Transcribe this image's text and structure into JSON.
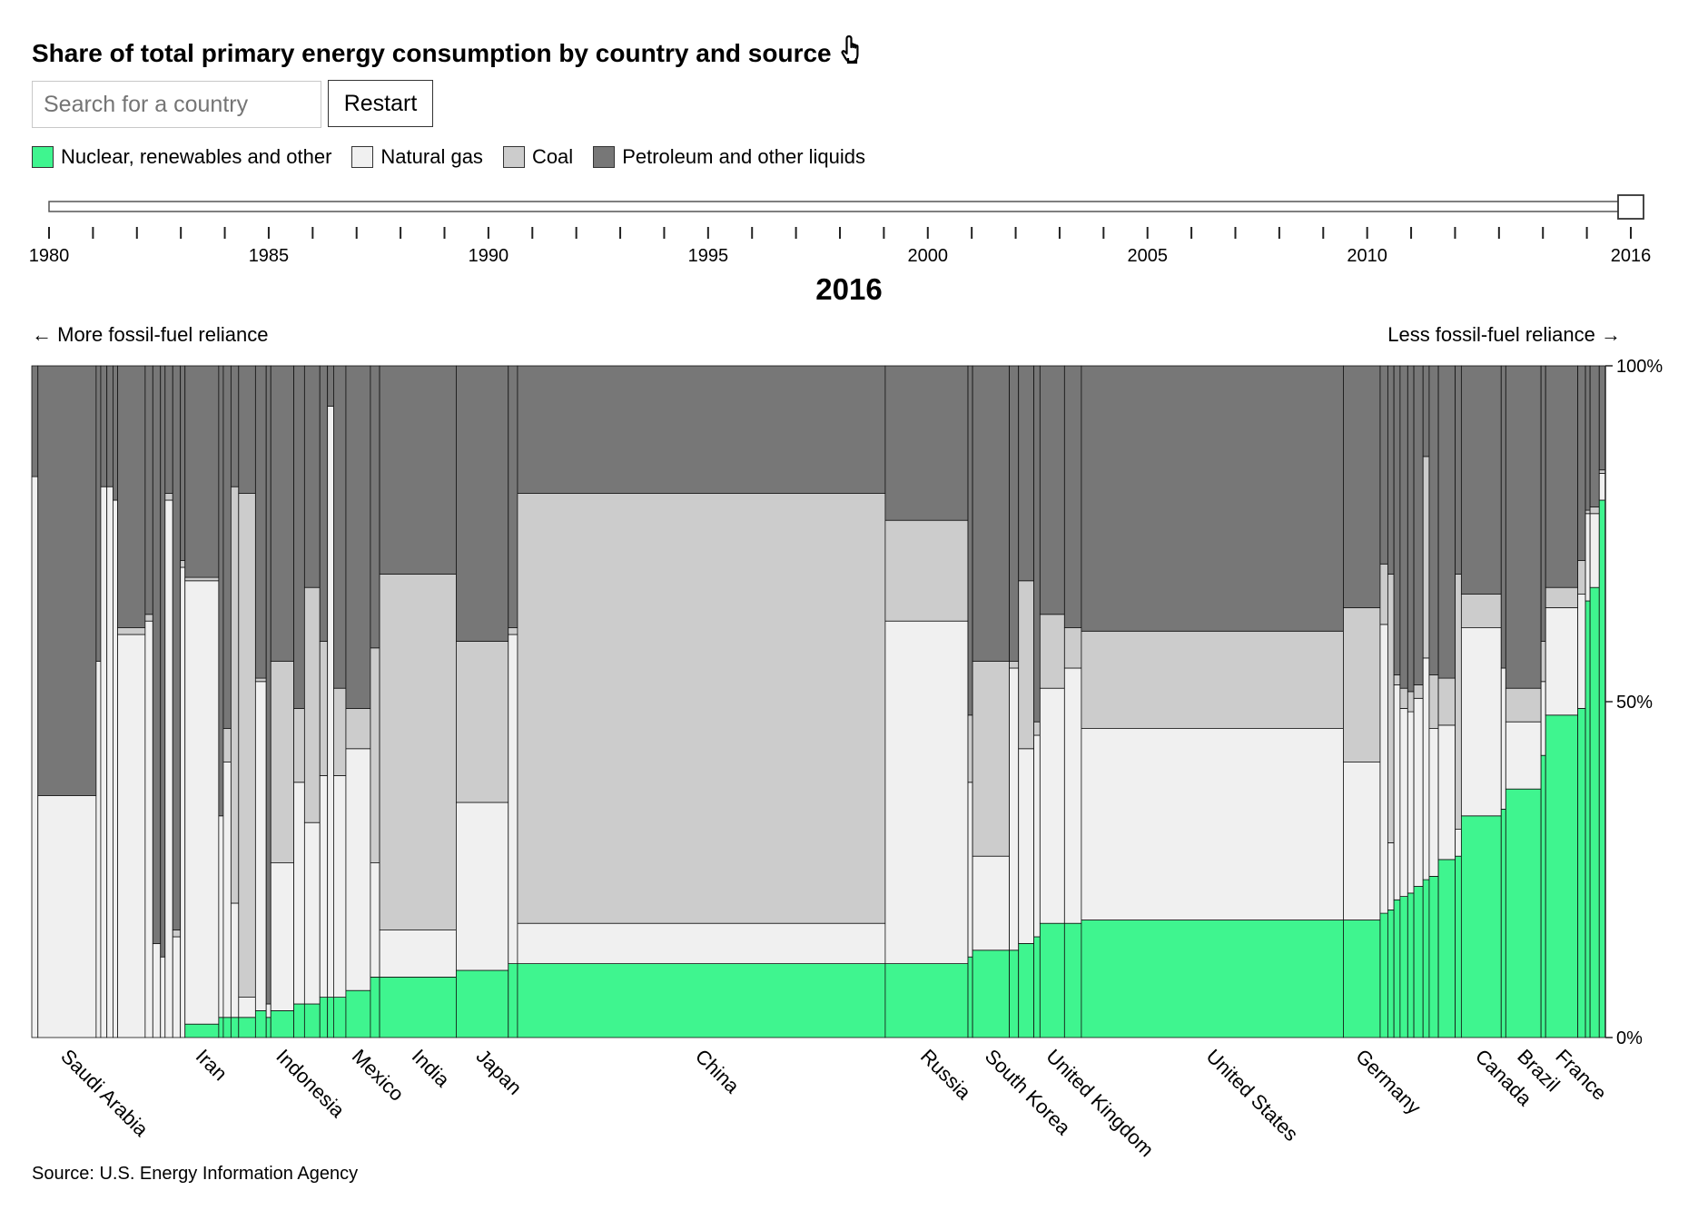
{
  "header": {
    "title": "Share of total primary energy consumption by country and source",
    "pointer_icon": "pointer-hand-icon"
  },
  "controls": {
    "search_placeholder": "Search for a country",
    "restart_label": "Restart"
  },
  "legend": {
    "items": [
      {
        "label": "Nuclear, renewables and other",
        "color": "#3ff58f"
      },
      {
        "label": "Natural gas",
        "color": "#f0f0f0"
      },
      {
        "label": "Coal",
        "color": "#cccccc"
      },
      {
        "label": "Petroleum and other liquids",
        "color": "#777777"
      }
    ]
  },
  "timeline": {
    "start_year": 1980,
    "end_year": 2016,
    "selected_year": 2016,
    "labels": [
      "1980",
      "1985",
      "1990",
      "1995",
      "2000",
      "2005",
      "2010",
      "2016"
    ]
  },
  "selected_year_label": "2016",
  "direction": {
    "left": "← More fossil-fuel reliance",
    "right": "Less fossil-fuel reliance →"
  },
  "source": "Source: U.S. Energy Information Agency",
  "chart_data": {
    "type": "marimekko",
    "ylim": [
      0,
      100
    ],
    "y_ticks": [
      "0%",
      "50%",
      "100%"
    ],
    "series": [
      {
        "name": "Nuclear, renewables and other",
        "color": "#3ff58f"
      },
      {
        "name": "Natural gas",
        "color": "#f0f0f0"
      },
      {
        "name": "Coal",
        "color": "#cccccc"
      },
      {
        "name": "Petroleum and other liquids",
        "color": "#777777"
      }
    ],
    "countries": [
      {
        "name": "",
        "share": 0.4,
        "values": [
          0,
          83.5,
          0,
          16.5
        ]
      },
      {
        "name": "Saudi Arabia",
        "share": 3.8,
        "values": [
          0,
          36,
          0,
          64
        ]
      },
      {
        "name": "",
        "share": 0.3,
        "values": [
          0,
          56,
          0,
          44
        ]
      },
      {
        "name": "",
        "share": 0.4,
        "values": [
          0,
          82,
          0,
          18
        ]
      },
      {
        "name": "",
        "share": 0.4,
        "values": [
          0,
          82,
          0,
          18
        ]
      },
      {
        "name": "",
        "share": 0.3,
        "values": [
          0,
          80,
          0,
          20
        ]
      },
      {
        "name": "",
        "share": 1.8,
        "values": [
          0,
          60,
          1,
          39
        ]
      },
      {
        "name": "",
        "share": 0.5,
        "values": [
          0,
          62,
          1,
          37
        ]
      },
      {
        "name": "",
        "share": 0.5,
        "values": [
          0,
          14,
          0,
          86
        ]
      },
      {
        "name": "",
        "share": 0.3,
        "values": [
          0,
          12,
          0,
          88
        ]
      },
      {
        "name": "",
        "share": 0.5,
        "values": [
          0,
          80,
          1,
          19
        ]
      },
      {
        "name": "",
        "share": 0.5,
        "values": [
          0,
          15,
          1,
          84
        ]
      },
      {
        "name": "",
        "share": 0.3,
        "values": [
          0,
          70,
          1,
          29
        ]
      },
      {
        "name": "Iran",
        "share": 2.2,
        "values": [
          2,
          66,
          0.5,
          31.5
        ]
      },
      {
        "name": "",
        "share": 0.3,
        "values": [
          3,
          30,
          0,
          67
        ]
      },
      {
        "name": "",
        "share": 0.5,
        "values": [
          3,
          38,
          5,
          54
        ]
      },
      {
        "name": "",
        "share": 0.5,
        "values": [
          3,
          17,
          62,
          18
        ]
      },
      {
        "name": "",
        "share": 1.1,
        "values": [
          3,
          3,
          75,
          19
        ]
      },
      {
        "name": "",
        "share": 0.7,
        "values": [
          4,
          49,
          0.5,
          46.5
        ]
      },
      {
        "name": "",
        "share": 0.3,
        "values": [
          3,
          2,
          0,
          95
        ]
      },
      {
        "name": "Indonesia",
        "share": 1.5,
        "values": [
          4,
          22,
          30,
          44
        ]
      },
      {
        "name": "",
        "share": 0.7,
        "values": [
          5,
          33,
          11,
          51
        ]
      },
      {
        "name": "",
        "share": 1.0,
        "values": [
          5,
          27,
          35,
          33
        ]
      },
      {
        "name": "",
        "share": 0.5,
        "values": [
          6,
          33,
          20,
          41
        ]
      },
      {
        "name": "",
        "share": 0.4,
        "values": [
          6,
          88,
          0,
          6
        ]
      },
      {
        "name": "",
        "share": 0.8,
        "values": [
          6,
          33,
          13,
          48
        ]
      },
      {
        "name": "Mexico",
        "share": 1.6,
        "values": [
          7,
          36,
          6,
          51
        ]
      },
      {
        "name": "",
        "share": 0.6,
        "values": [
          9,
          17,
          32,
          42
        ]
      },
      {
        "name": "India",
        "share": 5.0,
        "values": [
          9,
          7,
          53,
          31
        ]
      },
      {
        "name": "Japan",
        "share": 3.4,
        "values": [
          10,
          25,
          24,
          41
        ]
      },
      {
        "name": "",
        "share": 0.6,
        "values": [
          11,
          49,
          1,
          39
        ]
      },
      {
        "name": "China",
        "share": 24.0,
        "values": [
          11,
          6,
          64,
          19
        ]
      },
      {
        "name": "Russia",
        "share": 5.4,
        "values": [
          11,
          51,
          15,
          23
        ]
      },
      {
        "name": "",
        "share": 0.3,
        "values": [
          12,
          26,
          10,
          52
        ]
      },
      {
        "name": "South Korea",
        "share": 2.4,
        "values": [
          13,
          14,
          29,
          44
        ]
      },
      {
        "name": "",
        "share": 0.6,
        "values": [
          13,
          42,
          1,
          44
        ]
      },
      {
        "name": "",
        "share": 1.0,
        "values": [
          14,
          29,
          25,
          32
        ]
      },
      {
        "name": "",
        "share": 0.4,
        "values": [
          15,
          30,
          2,
          53
        ]
      },
      {
        "name": "United Kingdom",
        "share": 1.6,
        "values": [
          17,
          35,
          11,
          37
        ]
      },
      {
        "name": "",
        "share": 1.1,
        "values": [
          17,
          38,
          6,
          39
        ]
      },
      {
        "name": "United States",
        "share": 17.1,
        "values": [
          17.5,
          28.5,
          14.5,
          39.5
        ]
      },
      {
        "name": "Germany",
        "share": 2.4,
        "values": [
          17.5,
          23.5,
          23,
          36
        ]
      },
      {
        "name": "",
        "share": 0.5,
        "values": [
          18.5,
          43,
          9,
          29.5
        ]
      },
      {
        "name": "",
        "share": 0.4,
        "values": [
          19,
          10,
          40,
          31
        ]
      },
      {
        "name": "",
        "share": 0.4,
        "values": [
          20.5,
          32,
          1.5,
          46
        ]
      },
      {
        "name": "",
        "share": 0.5,
        "values": [
          21,
          28,
          3,
          48
        ]
      },
      {
        "name": "",
        "share": 0.4,
        "values": [
          21.5,
          27,
          3,
          48.5
        ]
      },
      {
        "name": "",
        "share": 0.6,
        "values": [
          22.5,
          28,
          2,
          47.5
        ]
      },
      {
        "name": "",
        "share": 0.4,
        "values": [
          23.5,
          33,
          30,
          13.5
        ]
      },
      {
        "name": "",
        "share": 0.6,
        "values": [
          24,
          22,
          8,
          46
        ]
      },
      {
        "name": "",
        "share": 1.1,
        "values": [
          26.5,
          20,
          7,
          46.5
        ]
      },
      {
        "name": "",
        "share": 0.4,
        "values": [
          27,
          4,
          38,
          31
        ]
      },
      {
        "name": "Canada",
        "share": 2.6,
        "values": [
          33,
          28,
          5,
          34
        ]
      },
      {
        "name": "",
        "share": 0.3,
        "values": [
          34,
          21,
          0,
          45
        ]
      },
      {
        "name": "Brazil",
        "share": 2.3,
        "values": [
          37,
          10,
          5,
          48
        ]
      },
      {
        "name": "",
        "share": 0.3,
        "values": [
          42,
          11,
          6,
          41
        ]
      },
      {
        "name": "France",
        "share": 2.1,
        "values": [
          48,
          16,
          3,
          33
        ]
      },
      {
        "name": "",
        "share": 0.5,
        "values": [
          49,
          17,
          5,
          29
        ]
      },
      {
        "name": "",
        "share": 0.3,
        "values": [
          65,
          13,
          0.5,
          21.5
        ]
      },
      {
        "name": "",
        "share": 0.6,
        "values": [
          67,
          11,
          1,
          21
        ]
      },
      {
        "name": "",
        "share": 0.4,
        "values": [
          80,
          4,
          0.5,
          15.5
        ]
      }
    ]
  }
}
